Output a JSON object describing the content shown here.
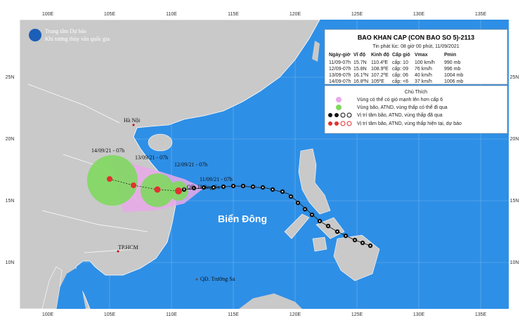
{
  "logo": {
    "line1": "Trung tâm Dự báo",
    "line2": "Khí tượng thủy văn quốc gia"
  },
  "info": {
    "title": "BAO KHAN CAP (CON BAO SO 5)-2113",
    "issued": "Tin phát lúc: 08 giờ 00 phút, 11/09/2021",
    "table": {
      "header": [
        "Ngày-giờ",
        "Vĩ độ",
        "Kinh độ",
        "Cấp gió",
        "Vmax",
        "Pmin"
      ],
      "rows": [
        [
          "11/09-07h",
          "15.7N",
          "110.4ºE",
          "cấp: 10",
          "100 km/h",
          "990 mb"
        ],
        [
          "12/09-07h",
          "15.8N",
          "108.9ºE",
          "cấp: 09",
          "76 km/h",
          "996 mb"
        ],
        [
          "13/09-07h",
          "16.1ºN",
          "107.2ºE",
          "cấp: 06",
          "40 km/h",
          "1004 mb"
        ],
        [
          "14/09-07h",
          "16.8ºN",
          "105ºE",
          "cấp: <6",
          "37 km/h",
          "1006 mb"
        ]
      ]
    }
  },
  "legend": {
    "title": "Chú Thích",
    "items": [
      "Vùng có thể có gió mạnh lên hơn cấp 6",
      "Vùng bão, ATND, vùng thấp có thể đi qua",
      "Vị trí tâm bão, ATND, vùng thấp đã qua",
      "Vị trí tâm bão, ATND, vùng thấp hiện tại, dự báo"
    ]
  },
  "map_labels": {
    "hanoi": "Hà Nội",
    "f14": "14/09/21 - 07h",
    "f13": "13/09/21 - 07h",
    "f12": "12/09/21 - 07h",
    "f11": "11/09/21 - 07h",
    "hoangsa": "QĐ. Hoàng Sa",
    "biendong": "Biển Đông",
    "hcm": "TP.HCM",
    "truongsa": "QĐ. Trường Sa"
  },
  "longitudes": [
    "100E",
    "105E",
    "110E",
    "115E",
    "120E",
    "125E",
    "130E",
    "135E"
  ],
  "latitudes": [
    "25N",
    "20N",
    "15N",
    "10N"
  ]
}
